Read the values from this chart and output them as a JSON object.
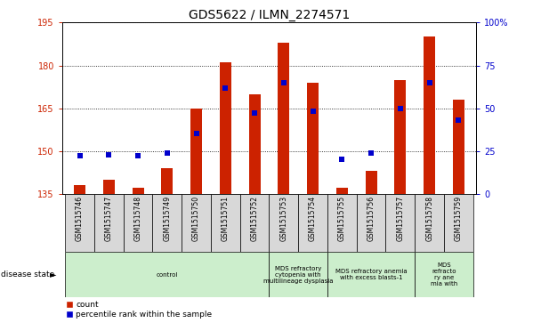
{
  "title": "GDS5622 / ILMN_2274571",
  "samples": [
    "GSM1515746",
    "GSM1515747",
    "GSM1515748",
    "GSM1515749",
    "GSM1515750",
    "GSM1515751",
    "GSM1515752",
    "GSM1515753",
    "GSM1515754",
    "GSM1515755",
    "GSM1515756",
    "GSM1515757",
    "GSM1515758",
    "GSM1515759"
  ],
  "counts": [
    138,
    140,
    137,
    144,
    165,
    181,
    170,
    188,
    174,
    137,
    143,
    175,
    190,
    168
  ],
  "percentiles": [
    22,
    23,
    22,
    24,
    35,
    62,
    47,
    65,
    48,
    20,
    24,
    50,
    65,
    43
  ],
  "ylim_left": [
    135,
    195
  ],
  "ylim_right": [
    0,
    100
  ],
  "yticks_left": [
    135,
    150,
    165,
    180,
    195
  ],
  "yticks_right": [
    0,
    25,
    50,
    75,
    100
  ],
  "bar_color": "#cc2200",
  "percentile_color": "#0000cc",
  "baseline": 135,
  "cell_color": "#d8d8d8",
  "disease_color": "#cceecc",
  "disease_groups": [
    {
      "label": "control",
      "start": 0,
      "end": 7
    },
    {
      "label": "MDS refractory\ncytopenia with\nmultilineage dysplasia",
      "start": 7,
      "end": 9
    },
    {
      "label": "MDS refractory anemia\nwith excess blasts-1",
      "start": 9,
      "end": 12
    },
    {
      "label": "MDS\nrefracto\nry ane\nmia with",
      "start": 12,
      "end": 14
    }
  ],
  "disease_state_label": "disease state",
  "count_label": "count",
  "percentile_label": "percentile rank within the sample",
  "tick_label_fontsize": 7,
  "title_fontsize": 10,
  "sample_fontsize": 5.5,
  "disease_fontsize": 5.0,
  "legend_fontsize": 6.5,
  "bar_width": 0.4
}
